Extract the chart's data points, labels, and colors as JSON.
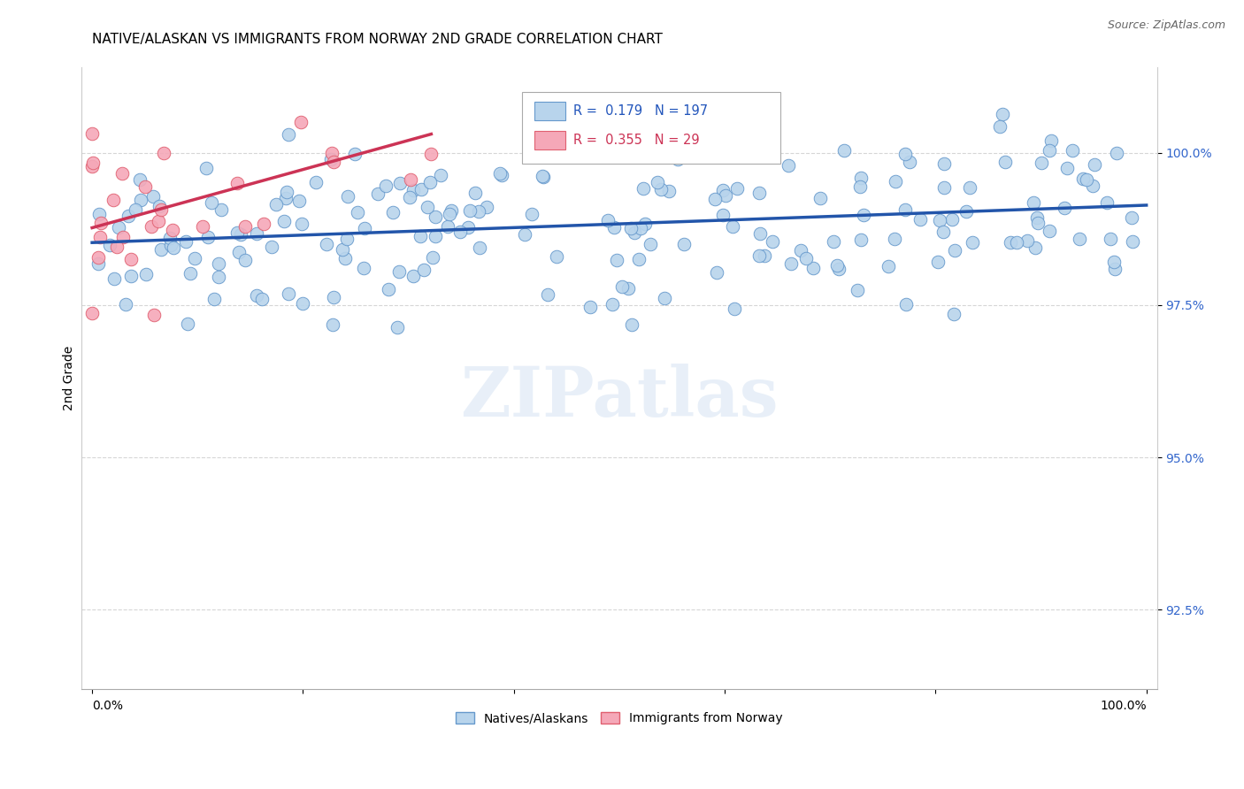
{
  "title": "NATIVE/ALASKAN VS IMMIGRANTS FROM NORWAY 2ND GRADE CORRELATION CHART",
  "source": "Source: ZipAtlas.com",
  "ylabel": "2nd Grade",
  "ylim": [
    91.2,
    101.4
  ],
  "xlim": [
    -0.01,
    1.01
  ],
  "yticks": [
    92.5,
    95.0,
    97.5,
    100.0
  ],
  "ytick_labels": [
    "92.5%",
    "95.0%",
    "97.5%",
    "100.0%"
  ],
  "blue_R": 0.179,
  "blue_N": 197,
  "pink_R": 0.355,
  "pink_N": 29,
  "blue_color": "#b8d4ec",
  "blue_edge": "#6699cc",
  "pink_color": "#f5a8b8",
  "pink_edge": "#e06070",
  "blue_line_color": "#2255aa",
  "pink_line_color": "#cc3355",
  "marker_size": 110,
  "watermark": "ZIPatlas",
  "seed": 42,
  "title_fontsize": 11,
  "source_fontsize": 9
}
